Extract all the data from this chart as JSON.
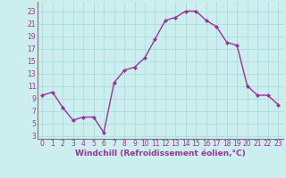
{
  "x": [
    0,
    1,
    2,
    3,
    4,
    5,
    6,
    7,
    8,
    9,
    10,
    11,
    12,
    13,
    14,
    15,
    16,
    17,
    18,
    19,
    20,
    21,
    22,
    23
  ],
  "y": [
    9.5,
    10.0,
    7.5,
    5.5,
    6.0,
    6.0,
    3.5,
    11.5,
    13.5,
    14.0,
    15.5,
    18.5,
    21.5,
    22.0,
    23.0,
    23.0,
    21.5,
    20.5,
    18.0,
    17.5,
    11.0,
    9.5,
    9.5,
    8.0
  ],
  "line_color": "#993399",
  "marker": "D",
  "markersize": 2,
  "linewidth": 1.0,
  "bg_color": "#cceeee",
  "grid_color": "#aadddd",
  "xlabel": "Windchill (Refroidissement éolien,°C)",
  "xlabel_fontsize": 6.5,
  "yticks": [
    3,
    5,
    7,
    9,
    11,
    13,
    15,
    17,
    19,
    21,
    23
  ],
  "xticks": [
    0,
    1,
    2,
    3,
    4,
    5,
    6,
    7,
    8,
    9,
    10,
    11,
    12,
    13,
    14,
    15,
    16,
    17,
    18,
    19,
    20,
    21,
    22,
    23
  ],
  "ylim": [
    2.5,
    24.5
  ],
  "xlim": [
    -0.5,
    23.5
  ],
  "tick_fontsize": 5.5,
  "tick_color": "#993399",
  "label_color": "#993399",
  "spine_color": "#777777"
}
